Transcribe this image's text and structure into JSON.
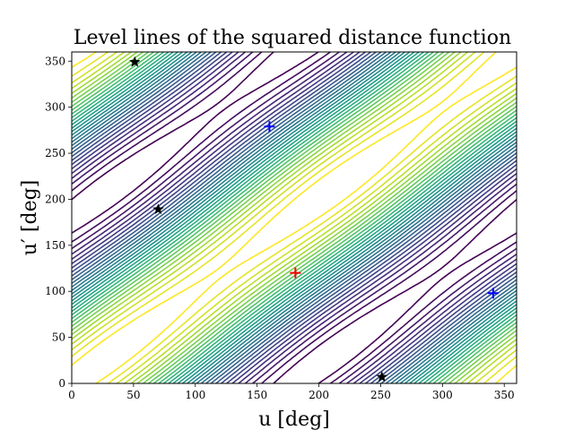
{
  "chart_data": {
    "type": "contour",
    "title": "Level lines of the squared distance function",
    "xlabel": "u [deg]",
    "ylabel": "u′ [deg]",
    "xlim": [
      0,
      360
    ],
    "ylim": [
      0,
      360
    ],
    "xticks": [
      0,
      50,
      100,
      150,
      200,
      250,
      300,
      350
    ],
    "yticks": [
      0,
      50,
      100,
      150,
      200,
      250,
      300,
      350
    ],
    "colormap": "viridis",
    "levels_count": 30,
    "markers": [
      {
        "name": "black-star",
        "symbol": "star",
        "color": "#000000",
        "points": [
          [
            51,
            349
          ],
          [
            70,
            189
          ],
          [
            251,
            7
          ]
        ]
      },
      {
        "name": "blue-plus",
        "symbol": "plus",
        "color": "#0000ff",
        "points": [
          [
            160,
            279
          ],
          [
            341,
            98
          ]
        ]
      },
      {
        "name": "red-plus",
        "symbol": "plus",
        "color": "#ff0000",
        "points": [
          [
            181,
            120
          ]
        ]
      }
    ]
  }
}
